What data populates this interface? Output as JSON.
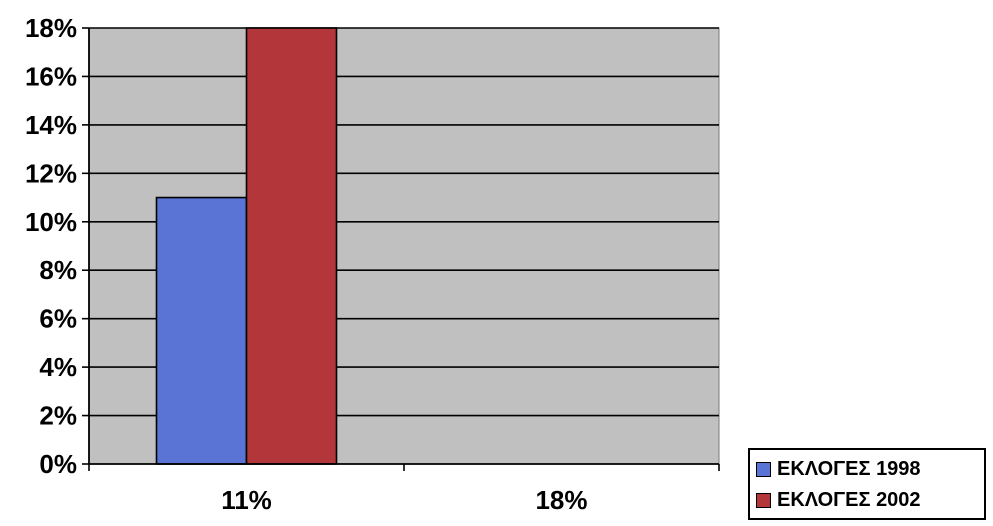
{
  "chart_data": {
    "type": "bar",
    "categories": [
      "11%",
      "18%"
    ],
    "series": [
      {
        "name": "ΕΚΛΟΓΕΣ 1998",
        "color": "#5a74d6",
        "values": [
          11,
          null
        ]
      },
      {
        "name": "ΕΚΛΟΓΕΣ 2002",
        "color": "#b3363b",
        "values": [
          18,
          null
        ]
      }
    ],
    "y_ticks": [
      "0%",
      "2%",
      "4%",
      "6%",
      "8%",
      "10%",
      "12%",
      "14%",
      "16%",
      "18%"
    ],
    "ylim": [
      0,
      18
    ],
    "y_unit": "%",
    "grid": true,
    "plot_background": "#c0c0c0",
    "legend_position": "bottom-right"
  }
}
